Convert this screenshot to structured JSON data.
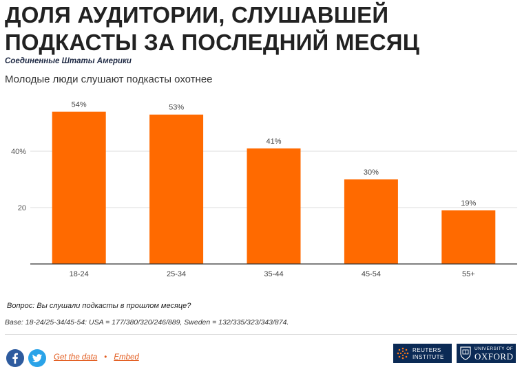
{
  "header": {
    "title": "ДОЛЯ АУДИТОРИИ, СЛУШАВШЕЙ ПОДКАСТЫ ЗА ПОСЛЕДНИЙ МЕСЯЦ",
    "subtitle": "Соединенные Штаты Америки",
    "caption": "Молодые люди слушают подкасты охотнее"
  },
  "chart_data": {
    "type": "bar",
    "categories": [
      "18-24",
      "25-34",
      "35-44",
      "45-54",
      "55+"
    ],
    "values": [
      54,
      53,
      41,
      30,
      19
    ],
    "value_labels": [
      "54%",
      "53%",
      "41%",
      "30%",
      "19%"
    ],
    "ylim": [
      0,
      60
    ],
    "yticks": [
      20,
      40
    ],
    "ytick_labels": [
      "20",
      "40%"
    ],
    "bar_color": "#ff6a00",
    "grid": true
  },
  "notes": {
    "question": "Вопрос: Вы слушали подкасты в прошлом месяце?",
    "base": "Base: 18-24/25-34/45-54: USA = 177/380/320/246/889, Sweden = 132/335/323/343/874."
  },
  "footer": {
    "get_data": "Get the data",
    "separator": "•",
    "embed": "Embed",
    "reuters_line1": "REUTERS",
    "reuters_line2": "INSTITUTE",
    "oxford_line1": "UNIVERSITY OF",
    "oxford_line2": "OXFORD",
    "brand_color": "#0b2a55",
    "link_color": "#e25a1c"
  }
}
